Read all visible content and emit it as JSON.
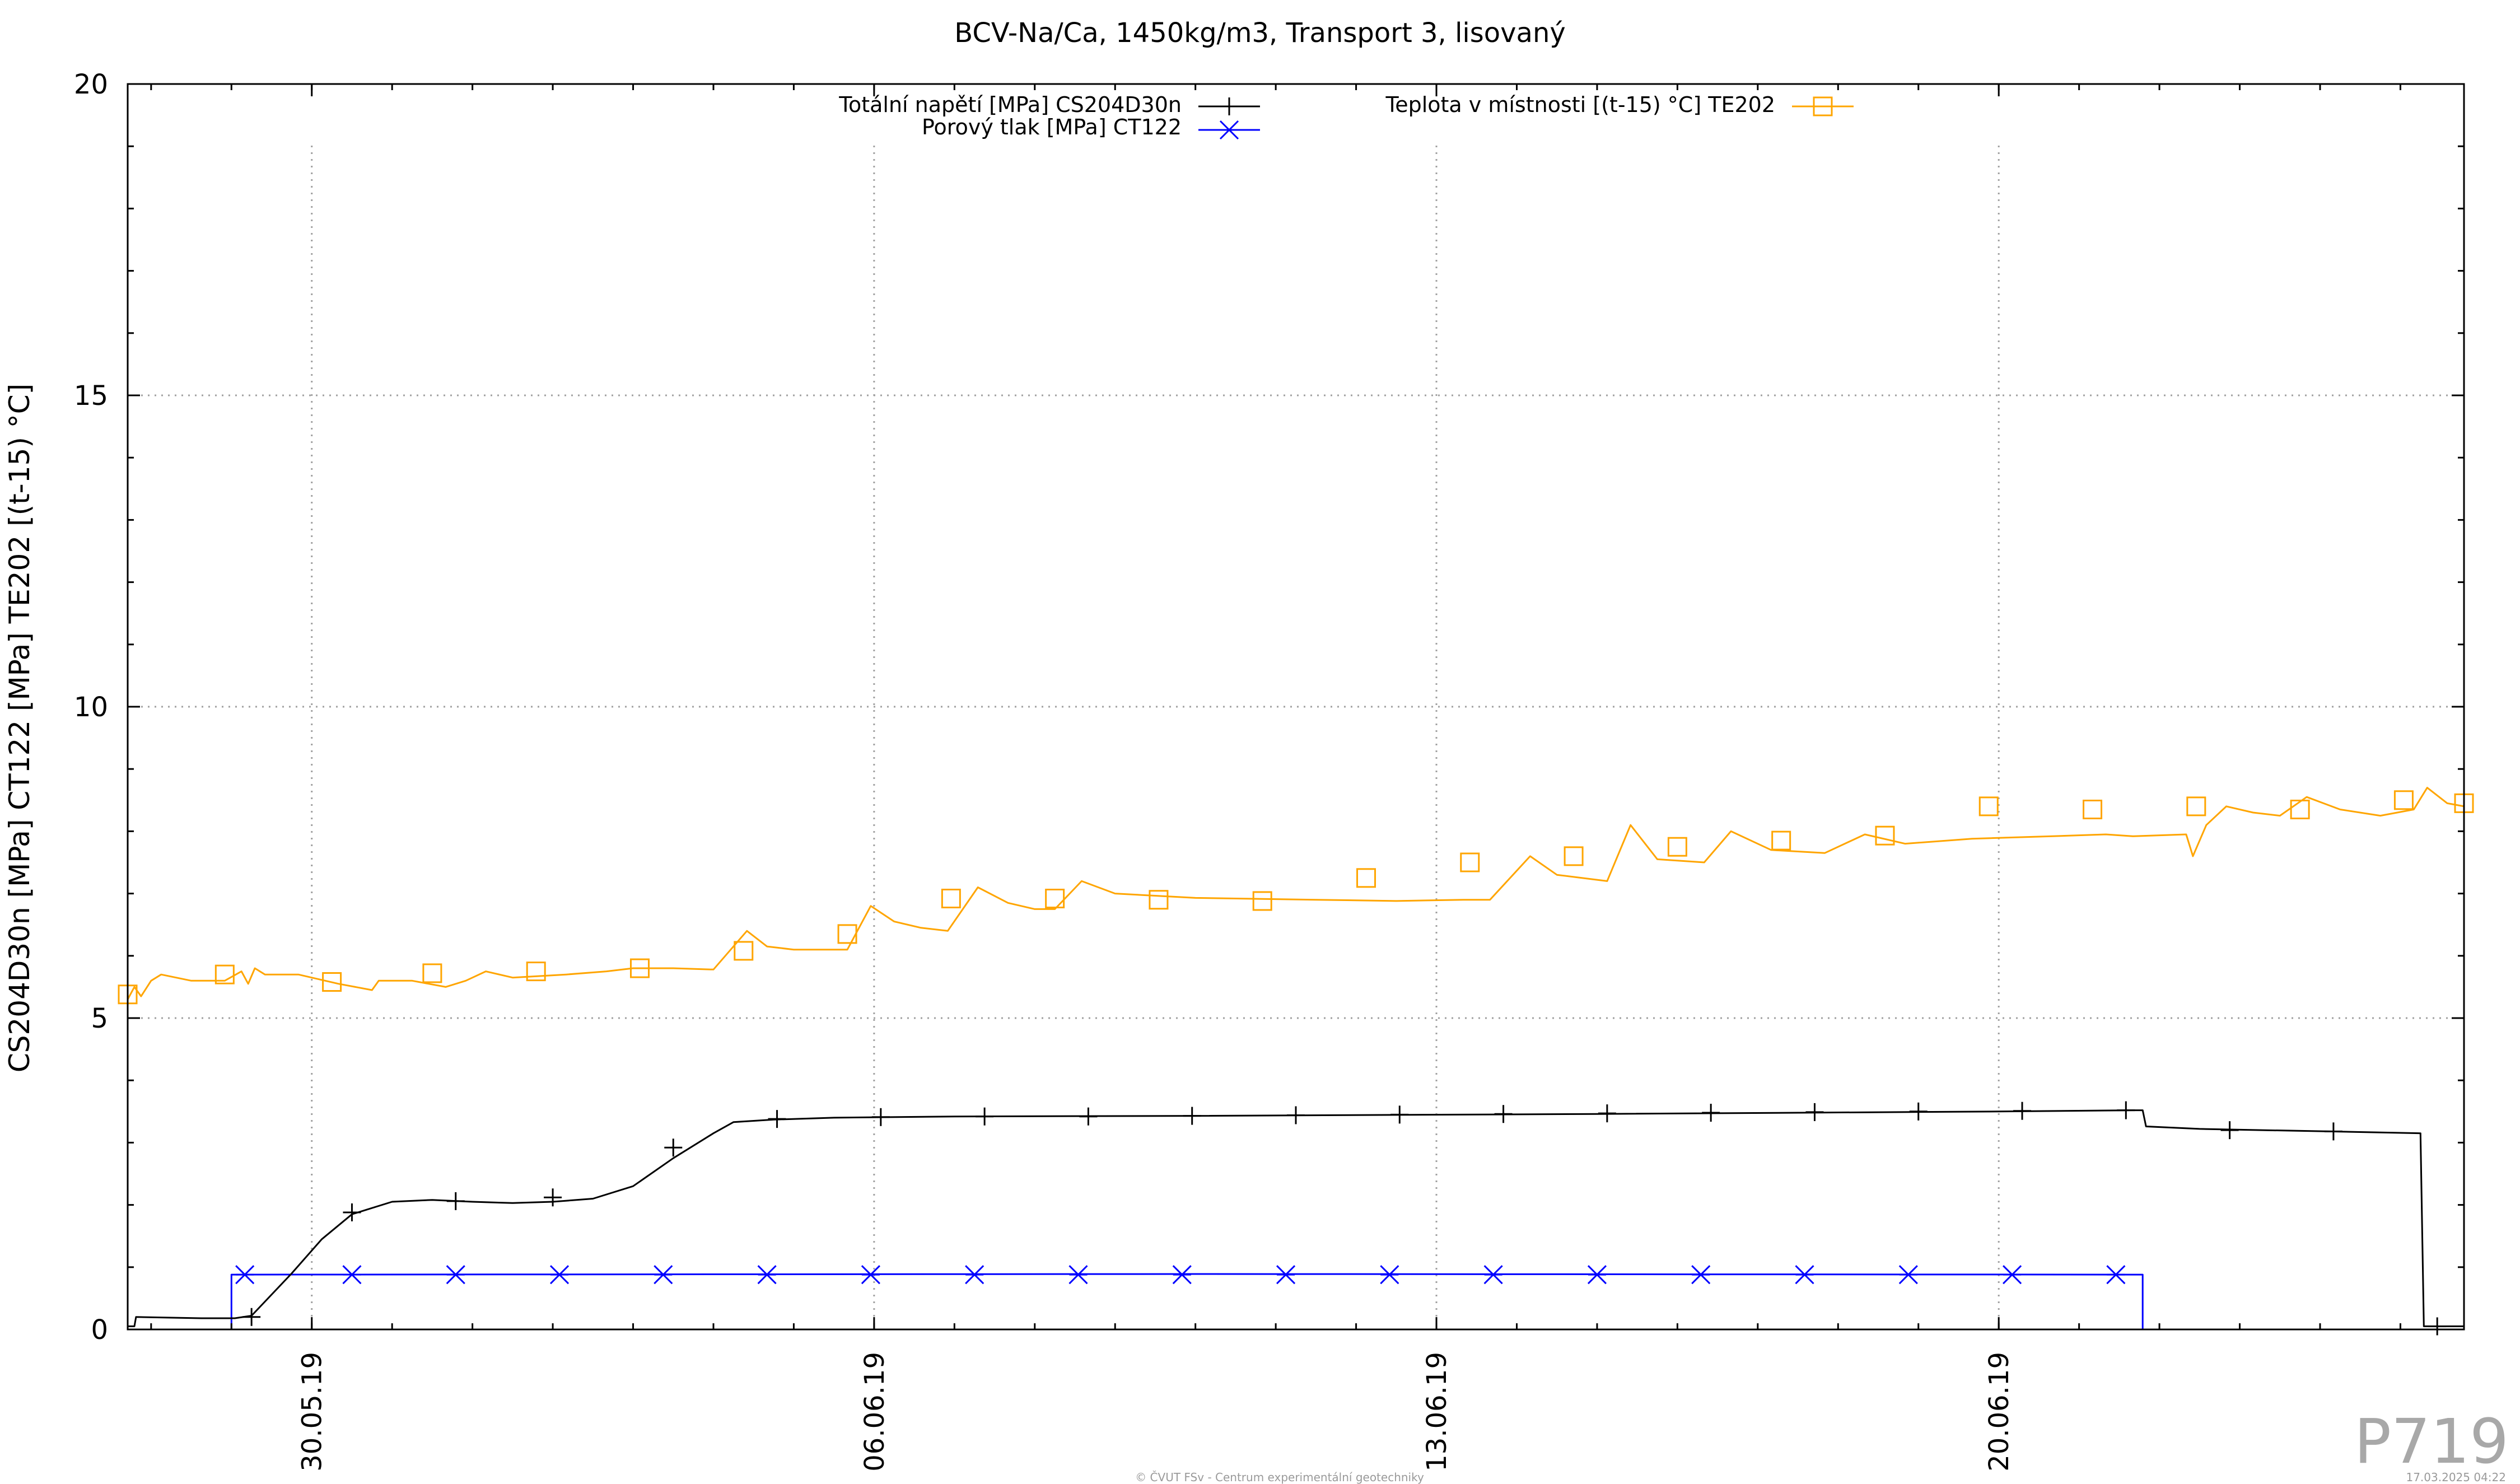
{
  "plot_id": "P719",
  "footer_left": "© ČVUT FSv - Centrum experimentální geotechniky",
  "footer_right": "17.03.2025 04:22",
  "chart_data": {
    "type": "line",
    "title": "BCV-Na/Ca, 1450kg/m3, Transport 3, lisovaný",
    "ylabel": "CS204D30n [MPa] CT122 [MPa] TE202 [(t-15) °C]",
    "xlabel": "",
    "ylim": [
      0,
      20
    ],
    "xlim": [
      "2019-05-27 17:00",
      "2019-06-25 19:00"
    ],
    "y_ticks": [
      "0",
      "5",
      "10",
      "15",
      "20"
    ],
    "x_ticks": [
      "30.05.19",
      "06.06.19",
      "13.06.19",
      "20.06.19"
    ],
    "grid": true,
    "legend_position": "top",
    "series": [
      {
        "name": "Totální napětí [MPa] CS204D30n",
        "color": "#000000",
        "marker": "plus",
        "points": [
          [
            "2019-05-27 17:00",
            0.05
          ],
          [
            "2019-05-27 19:00",
            0.05
          ],
          [
            "2019-05-27 19:30",
            0.2
          ],
          [
            "2019-05-28 15:00",
            0.18
          ],
          [
            "2019-05-28 19:00",
            0.18
          ],
          [
            "2019-05-29 01:00",
            0.18
          ],
          [
            "2019-05-29 06:00",
            0.22
          ],
          [
            "2019-05-29 18:00",
            0.9
          ],
          [
            "2019-05-30 03:00",
            1.45
          ],
          [
            "2019-05-30 12:00",
            1.85
          ],
          [
            "2019-05-31 00:00",
            2.05
          ],
          [
            "2019-05-31 12:00",
            2.08
          ],
          [
            "2019-06-01 00:00",
            2.05
          ],
          [
            "2019-06-01 12:00",
            2.03
          ],
          [
            "2019-06-02 00:00",
            2.05
          ],
          [
            "2019-06-02 12:00",
            2.1
          ],
          [
            "2019-06-03 00:00",
            2.3
          ],
          [
            "2019-06-03 12:00",
            2.75
          ],
          [
            "2019-06-04 00:00",
            3.15
          ],
          [
            "2019-06-04 06:00",
            3.33
          ],
          [
            "2019-06-04 18:00",
            3.37
          ],
          [
            "2019-06-05 12:00",
            3.4
          ],
          [
            "2019-06-07 00:00",
            3.42
          ],
          [
            "2019-06-10 00:00",
            3.43
          ],
          [
            "2019-06-15 00:00",
            3.46
          ],
          [
            "2019-06-20 00:00",
            3.5
          ],
          [
            "2019-06-21 16:00",
            3.52
          ],
          [
            "2019-06-21 19:00",
            3.52
          ],
          [
            "2019-06-21 20:00",
            3.26
          ],
          [
            "2019-06-22 12:00",
            3.22
          ],
          [
            "2019-06-24 12:00",
            3.17
          ],
          [
            "2019-06-25 06:00",
            3.15
          ],
          [
            "2019-06-25 07:00",
            0.05
          ],
          [
            "2019-06-25 19:00",
            0.05
          ]
        ],
        "markers": [
          [
            "2019-05-29 06:00",
            0.2
          ],
          [
            "2019-05-30 12:00",
            1.88
          ],
          [
            "2019-05-31 19:00",
            2.06
          ],
          [
            "2019-06-02 00:00",
            2.12
          ],
          [
            "2019-06-03 12:00",
            2.92
          ],
          [
            "2019-06-04 19:00",
            3.38
          ],
          [
            "2019-06-06 02:00",
            3.41
          ],
          [
            "2019-06-07 09:00",
            3.42
          ],
          [
            "2019-06-08 16:00",
            3.42
          ],
          [
            "2019-06-09 23:00",
            3.43
          ],
          [
            "2019-06-11 06:00",
            3.44
          ],
          [
            "2019-06-12 13:00",
            3.45
          ],
          [
            "2019-06-13 20:00",
            3.46
          ],
          [
            "2019-06-15 03:00",
            3.47
          ],
          [
            "2019-06-16 10:00",
            3.48
          ],
          [
            "2019-06-17 17:00",
            3.49
          ],
          [
            "2019-06-19 00:00",
            3.5
          ],
          [
            "2019-06-20 07:00",
            3.51
          ],
          [
            "2019-06-21 14:00",
            3.52
          ],
          [
            "2019-06-22 21:00",
            3.2
          ],
          [
            "2019-06-24 04:00",
            3.18
          ],
          [
            "2019-06-25 11:00",
            0.05
          ]
        ]
      },
      {
        "name": "Porový tlak [MPa] CT122",
        "color": "#0000ff",
        "marker": "star",
        "points": [
          [
            "2019-05-28 23:00",
            0
          ],
          [
            "2019-05-29 00:00",
            0
          ],
          [
            "2019-05-29 00:00",
            0.88
          ],
          [
            "2019-06-10 00:00",
            0.89
          ],
          [
            "2019-06-21 19:00",
            0.88
          ],
          [
            "2019-06-21 19:00",
            0
          ],
          [
            "2019-06-21 20:00",
            0
          ]
        ],
        "markers": [
          [
            "2019-05-29 04:00",
            0.88
          ],
          [
            "2019-05-30 12:00",
            0.88
          ],
          [
            "2019-05-31 19:00",
            0.88
          ],
          [
            "2019-06-02 02:00",
            0.88
          ],
          [
            "2019-06-03 09:00",
            0.88
          ],
          [
            "2019-06-04 16:00",
            0.88
          ],
          [
            "2019-06-05 23:00",
            0.88
          ],
          [
            "2019-06-07 06:00",
            0.88
          ],
          [
            "2019-06-08 13:00",
            0.88
          ],
          [
            "2019-06-09 20:00",
            0.88
          ],
          [
            "2019-06-11 03:00",
            0.88
          ],
          [
            "2019-06-12 10:00",
            0.88
          ],
          [
            "2019-06-13 17:00",
            0.88
          ],
          [
            "2019-06-15 00:00",
            0.88
          ],
          [
            "2019-06-16 07:00",
            0.88
          ],
          [
            "2019-06-17 14:00",
            0.88
          ],
          [
            "2019-06-18 21:00",
            0.88
          ],
          [
            "2019-06-20 04:00",
            0.88
          ],
          [
            "2019-06-21 11:00",
            0.88
          ]
        ]
      },
      {
        "name": "Teplota v místnosti [(t-15) °C] TE202",
        "color": "#ffa500",
        "marker": "square",
        "points": [
          [
            "2019-05-27 17:00",
            5.3
          ],
          [
            "2019-05-27 19:00",
            5.5
          ],
          [
            "2019-05-27 21:00",
            5.35
          ],
          [
            "2019-05-28 00:00",
            5.6
          ],
          [
            "2019-05-28 03:00",
            5.7
          ],
          [
            "2019-05-28 12:00",
            5.6
          ],
          [
            "2019-05-28 22:00",
            5.6
          ],
          [
            "2019-05-29 03:00",
            5.75
          ],
          [
            "2019-05-29 05:00",
            5.55
          ],
          [
            "2019-05-29 07:00",
            5.8
          ],
          [
            "2019-05-29 10:00",
            5.7
          ],
          [
            "2019-05-29 20:00",
            5.7
          ],
          [
            "2019-05-30 08:00",
            5.55
          ],
          [
            "2019-05-30 18:00",
            5.45
          ],
          [
            "2019-05-30 20:00",
            5.6
          ],
          [
            "2019-05-31 06:00",
            5.6
          ],
          [
            "2019-05-31 16:00",
            5.5
          ],
          [
            "2019-05-31 22:00",
            5.6
          ],
          [
            "2019-06-01 04:00",
            5.75
          ],
          [
            "2019-06-01 12:00",
            5.65
          ],
          [
            "2019-06-02 04:00",
            5.7
          ],
          [
            "2019-06-02 16:00",
            5.75
          ],
          [
            "2019-06-03 00:00",
            5.8
          ],
          [
            "2019-06-03 12:00",
            5.8
          ],
          [
            "2019-06-04 00:00",
            5.78
          ],
          [
            "2019-06-04 10:00",
            6.4
          ],
          [
            "2019-06-04 16:00",
            6.15
          ],
          [
            "2019-06-05 00:00",
            6.1
          ],
          [
            "2019-06-05 16:00",
            6.1
          ],
          [
            "2019-06-05 23:00",
            6.8
          ],
          [
            "2019-06-06 06:00",
            6.55
          ],
          [
            "2019-06-06 14:00",
            6.45
          ],
          [
            "2019-06-06 22:00",
            6.4
          ],
          [
            "2019-06-07 07:00",
            7.1
          ],
          [
            "2019-06-07 16:00",
            6.85
          ],
          [
            "2019-06-08 00:00",
            6.75
          ],
          [
            "2019-06-08 06:00",
            6.75
          ],
          [
            "2019-06-08 14:00",
            7.2
          ],
          [
            "2019-06-09 00:00",
            7.0
          ],
          [
            "2019-06-10 00:00",
            6.93
          ],
          [
            "2019-06-11 12:00",
            6.9
          ],
          [
            "2019-06-12 12:00",
            6.88
          ],
          [
            "2019-06-13 08:00",
            6.9
          ],
          [
            "2019-06-13 16:00",
            6.9
          ],
          [
            "2019-06-14 04:00",
            7.6
          ],
          [
            "2019-06-14 12:00",
            7.3
          ],
          [
            "2019-06-15 03:00",
            7.2
          ],
          [
            "2019-06-15 10:00",
            8.1
          ],
          [
            "2019-06-15 18:00",
            7.55
          ],
          [
            "2019-06-16 08:00",
            7.5
          ],
          [
            "2019-06-16 16:00",
            8.0
          ],
          [
            "2019-06-17 04:00",
            7.7
          ],
          [
            "2019-06-17 20:00",
            7.65
          ],
          [
            "2019-06-18 08:00",
            7.95
          ],
          [
            "2019-06-18 20:00",
            7.8
          ],
          [
            "2019-06-19 16:00",
            7.88
          ],
          [
            "2019-06-20 16:00",
            7.92
          ],
          [
            "2019-06-21 08:00",
            7.95
          ],
          [
            "2019-06-21 16:00",
            7.92
          ],
          [
            "2019-06-22 08:00",
            7.95
          ],
          [
            "2019-06-22 10:00",
            7.6
          ],
          [
            "2019-06-22 14:00",
            8.1
          ],
          [
            "2019-06-22 20:00",
            8.4
          ],
          [
            "2019-06-23 04:00",
            8.3
          ],
          [
            "2019-06-23 12:00",
            8.25
          ],
          [
            "2019-06-23 20:00",
            8.55
          ],
          [
            "2019-06-24 06:00",
            8.35
          ],
          [
            "2019-06-24 18:00",
            8.25
          ],
          [
            "2019-06-25 04:00",
            8.35
          ],
          [
            "2019-06-25 08:00",
            8.7
          ],
          [
            "2019-06-25 14:00",
            8.45
          ],
          [
            "2019-06-25 19:00",
            8.4
          ]
        ],
        "markers": [
          [
            "2019-05-27 17:00",
            5.38
          ],
          [
            "2019-05-28 22:00",
            5.7
          ],
          [
            "2019-05-30 06:00",
            5.58
          ],
          [
            "2019-05-31 12:00",
            5.72
          ],
          [
            "2019-06-01 19:00",
            5.75
          ],
          [
            "2019-06-03 02:00",
            5.8
          ],
          [
            "2019-06-04 09:00",
            6.08
          ],
          [
            "2019-06-05 16:00",
            6.35
          ],
          [
            "2019-06-06 23:00",
            6.92
          ],
          [
            "2019-06-08 06:00",
            6.92
          ],
          [
            "2019-06-09 13:00",
            6.9
          ],
          [
            "2019-06-10 20:00",
            6.88
          ],
          [
            "2019-06-12 03:00",
            7.25
          ],
          [
            "2019-06-13 10:00",
            7.5
          ],
          [
            "2019-06-14 17:00",
            7.6
          ],
          [
            "2019-06-16 00:00",
            7.75
          ],
          [
            "2019-06-17 07:00",
            7.85
          ],
          [
            "2019-06-18 14:00",
            7.93
          ],
          [
            "2019-06-19 21:00",
            8.4
          ],
          [
            "2019-06-21 04:00",
            8.35
          ],
          [
            "2019-06-22 11:00",
            8.4
          ],
          [
            "2019-06-23 18:00",
            8.35
          ],
          [
            "2019-06-25 01:00",
            8.5
          ],
          [
            "2019-06-25 19:00",
            8.45
          ]
        ]
      }
    ]
  }
}
